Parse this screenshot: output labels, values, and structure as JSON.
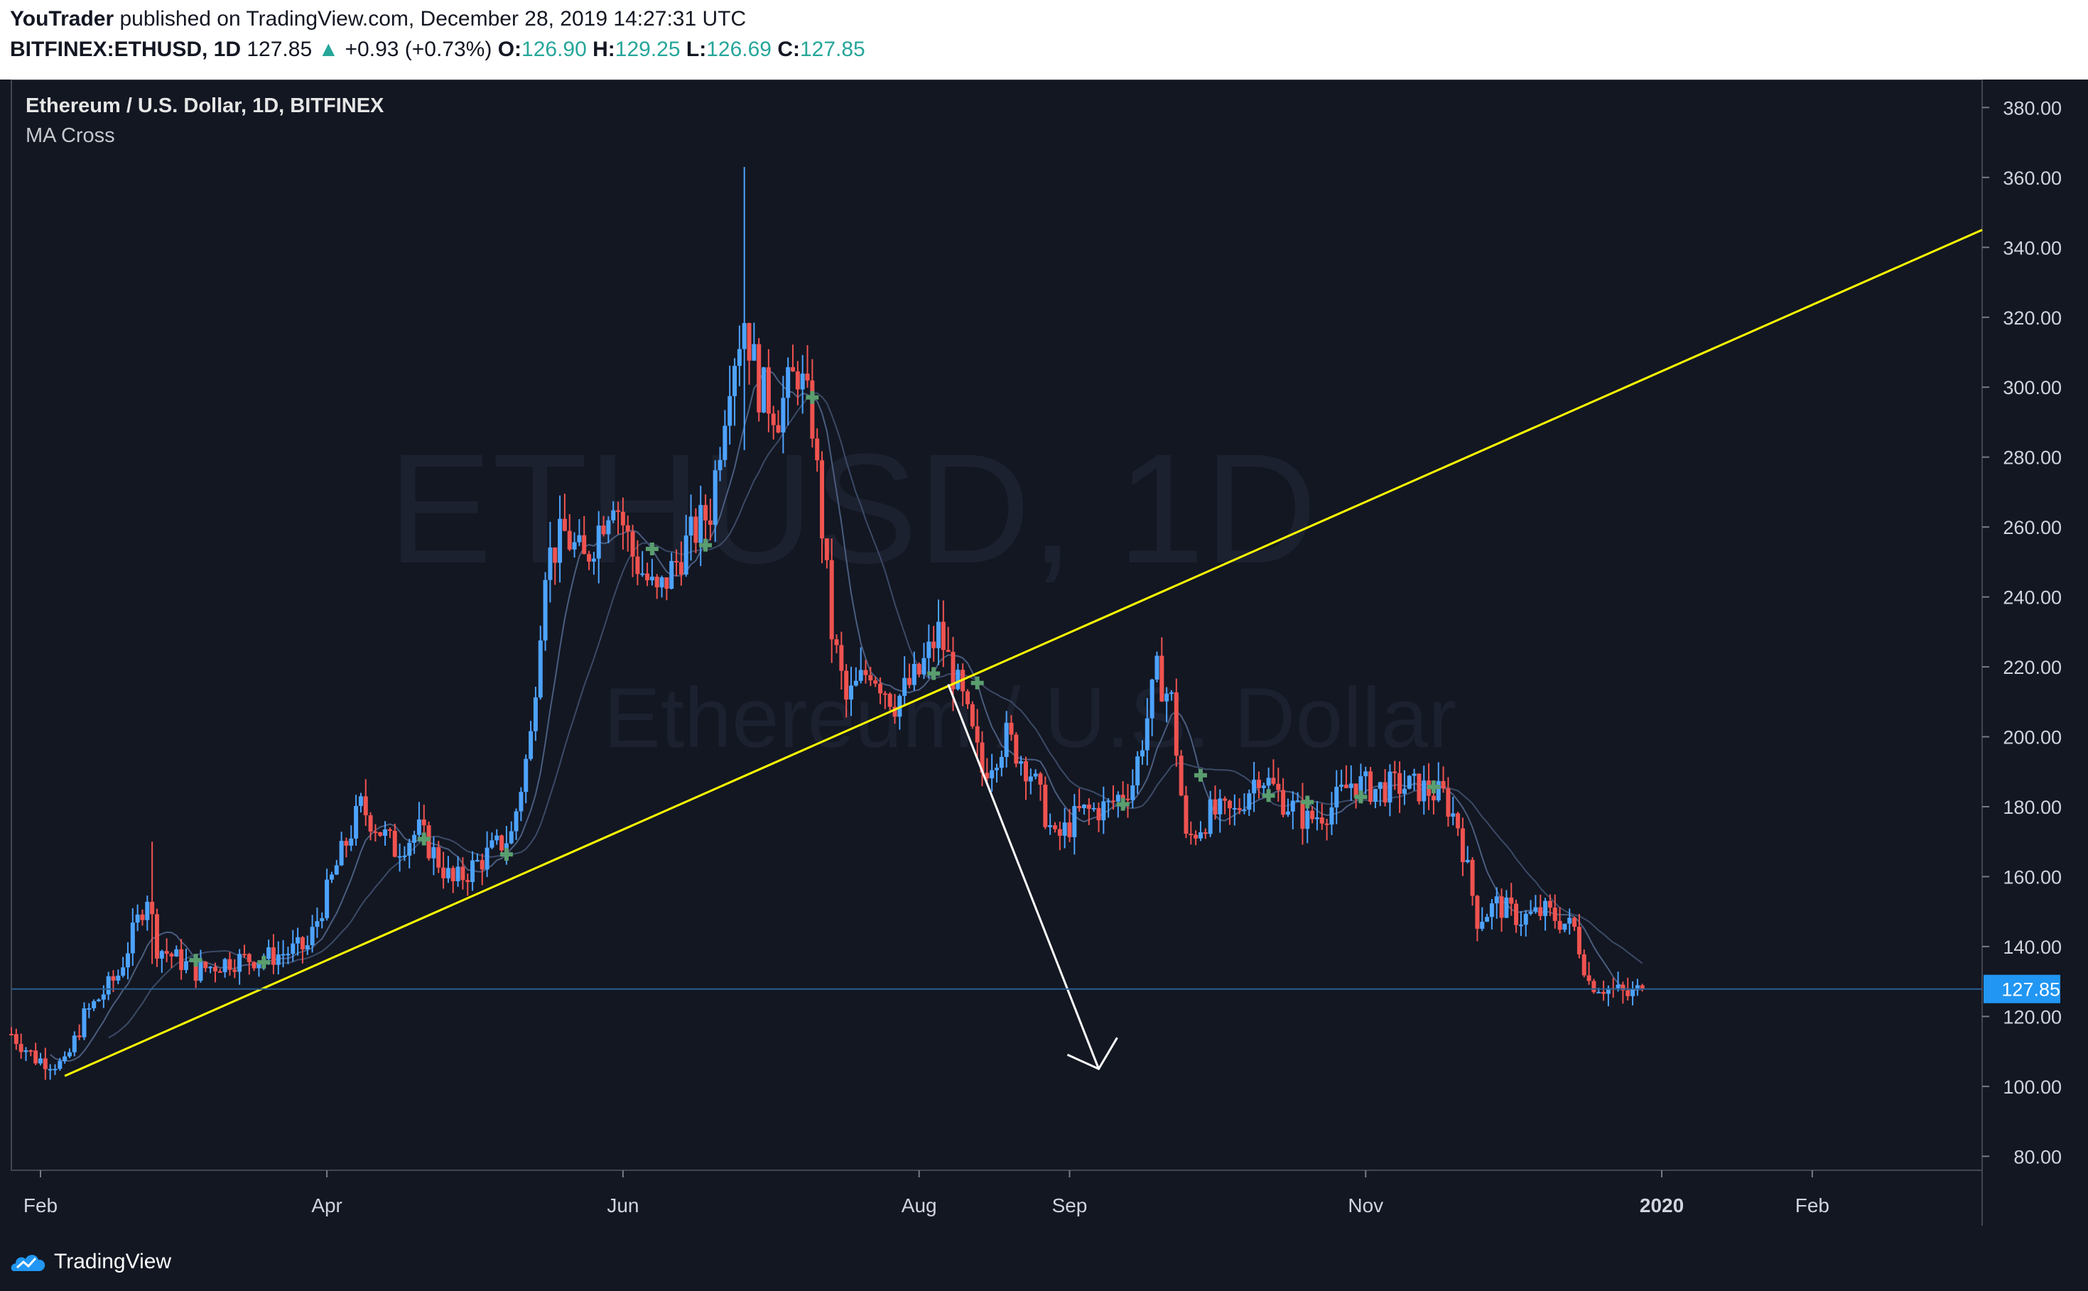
{
  "header": {
    "author": "YouTrader",
    "published_text": "published on TradingView.com, December 28, 2019 14:27:31 UTC",
    "symbol": "BITFINEX:ETHUSD, 1D",
    "last": "127.85",
    "change_arrow": "▲",
    "change": "+0.93 (+0.73%)",
    "o_label": "O:",
    "o_value": "126.90",
    "h_label": "H:",
    "h_value": "129.25",
    "l_label": "L:",
    "l_value": "126.69",
    "c_label": "C:",
    "c_value": "127.85"
  },
  "chart_title": "Ethereum / U.S. Dollar, 1D, BITFINEX",
  "indicator_label": "MA Cross",
  "watermark": {
    "symbol": "ETHUSD, 1D",
    "name": "Ethereum / U.S. Dollar"
  },
  "price_tag": "127.85",
  "footer": {
    "brand": "TradingView"
  },
  "colors": {
    "background": "#131722",
    "up": "#4da3ff",
    "down": "#ef5350",
    "trendline": "#ffff00",
    "arrow": "#ffffff",
    "ma": "#4a5d7e",
    "cross": "#5a9e6f",
    "price_tag": "#2196f3"
  },
  "chart_data": {
    "type": "candlestick",
    "title": "Ethereum / U.S. Dollar, 1D, BITFINEX",
    "y_ticks": [
      80,
      100,
      120,
      140,
      160,
      180,
      200,
      220,
      240,
      260,
      280,
      300,
      320,
      340,
      360,
      380
    ],
    "y_tick_labels": [
      "80.00",
      "100.00",
      "120.00",
      "140.00",
      "160.00",
      "180.00",
      "200.00",
      "220.00",
      "240.00",
      "260.00",
      "280.00",
      "300.00",
      "320.00",
      "340.00",
      "360.00",
      "380.00"
    ],
    "ylim": [
      76,
      388
    ],
    "x_range": [
      "2019-01-26",
      "2020-03-07"
    ],
    "x_ticks": [
      {
        "date": "2019-02-01",
        "label": "Feb"
      },
      {
        "date": "2019-04-01",
        "label": "Apr"
      },
      {
        "date": "2019-06-01",
        "label": "Jun"
      },
      {
        "date": "2019-08-01",
        "label": "Aug"
      },
      {
        "date": "2019-09-01",
        "label": "Sep"
      },
      {
        "date": "2019-11-01",
        "label": "Nov"
      },
      {
        "date": "2020-01-01",
        "label": "2020"
      },
      {
        "date": "2020-02-01",
        "label": "Feb"
      }
    ],
    "close_series": [
      [
        "2019-01-26",
        115
      ],
      [
        "2019-01-31",
        108
      ],
      [
        "2019-02-06",
        106
      ],
      [
        "2019-02-10",
        120
      ],
      [
        "2019-02-17",
        132
      ],
      [
        "2019-02-23",
        155
      ],
      [
        "2019-02-25",
        140
      ],
      [
        "2019-03-05",
        133
      ],
      [
        "2019-03-12",
        136
      ],
      [
        "2019-03-20",
        137
      ],
      [
        "2019-03-28",
        140
      ],
      [
        "2019-04-03",
        163
      ],
      [
        "2019-04-08",
        180
      ],
      [
        "2019-04-15",
        168
      ],
      [
        "2019-04-20",
        173
      ],
      [
        "2019-04-27",
        158
      ],
      [
        "2019-05-03",
        165
      ],
      [
        "2019-05-09",
        172
      ],
      [
        "2019-05-13",
        200
      ],
      [
        "2019-05-16",
        250
      ],
      [
        "2019-05-20",
        258
      ],
      [
        "2019-05-24",
        250
      ],
      [
        "2019-05-30",
        270
      ],
      [
        "2019-06-03",
        252
      ],
      [
        "2019-06-08",
        240
      ],
      [
        "2019-06-14",
        255
      ],
      [
        "2019-06-19",
        265
      ],
      [
        "2019-06-23",
        305
      ],
      [
        "2019-06-26",
        320
      ],
      [
        "2019-06-29",
        300
      ],
      [
        "2019-07-03",
        293
      ],
      [
        "2019-07-07",
        305
      ],
      [
        "2019-07-10",
        290
      ],
      [
        "2019-07-14",
        230
      ],
      [
        "2019-07-17",
        210
      ],
      [
        "2019-07-22",
        220
      ],
      [
        "2019-07-27",
        210
      ],
      [
        "2019-08-01",
        218
      ],
      [
        "2019-08-05",
        230
      ],
      [
        "2019-08-10",
        210
      ],
      [
        "2019-08-14",
        190
      ],
      [
        "2019-08-19",
        200
      ],
      [
        "2019-08-24",
        190
      ],
      [
        "2019-08-29",
        170
      ],
      [
        "2019-09-03",
        178
      ],
      [
        "2019-09-09",
        180
      ],
      [
        "2019-09-14",
        187
      ],
      [
        "2019-09-19",
        218
      ],
      [
        "2019-09-22",
        210
      ],
      [
        "2019-09-25",
        170
      ],
      [
        "2019-09-30",
        178
      ],
      [
        "2019-10-05",
        178
      ],
      [
        "2019-10-10",
        190
      ],
      [
        "2019-10-15",
        182
      ],
      [
        "2019-10-20",
        176
      ],
      [
        "2019-10-25",
        180
      ],
      [
        "2019-10-29",
        187
      ],
      [
        "2019-11-03",
        185
      ],
      [
        "2019-11-08",
        186
      ],
      [
        "2019-11-13",
        185
      ],
      [
        "2019-11-17",
        183
      ],
      [
        "2019-11-20",
        175
      ],
      [
        "2019-11-24",
        148
      ],
      [
        "2019-11-28",
        152
      ],
      [
        "2019-12-03",
        148
      ],
      [
        "2019-12-08",
        150
      ],
      [
        "2019-12-14",
        145
      ],
      [
        "2019-12-17",
        130
      ],
      [
        "2019-12-21",
        128
      ],
      [
        "2019-12-25",
        126
      ],
      [
        "2019-12-28",
        127.85
      ]
    ],
    "highlights": [
      {
        "date": "2019-06-26",
        "high": 363,
        "low": 282
      },
      {
        "date": "2019-02-24",
        "high": 170,
        "low": 135
      }
    ],
    "trendline": [
      [
        "2019-02-06",
        103
      ],
      [
        "2020-03-07",
        345
      ]
    ],
    "projection_arrow": [
      [
        "2019-08-07",
        215
      ],
      [
        "2019-09-07",
        105
      ]
    ],
    "last_price": 127.85
  }
}
